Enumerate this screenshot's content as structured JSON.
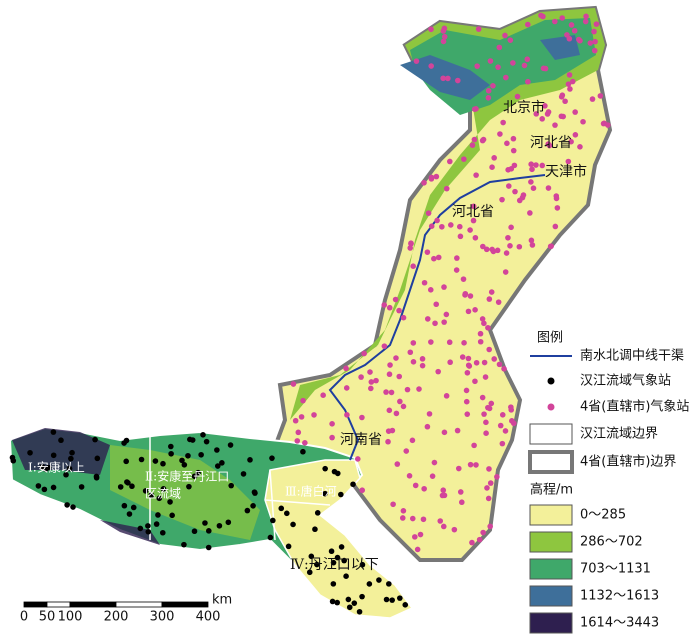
{
  "map": {
    "places": [
      "北京市",
      "河北省",
      "天津市",
      "河北省",
      "河南省"
    ],
    "basins": [
      "Ⅰ:安康以上",
      "Ⅱ:安康至丹江口",
      "区流域",
      "Ⅲ:唐白河",
      "Ⅳ:丹江口以下"
    ],
    "legend": {
      "title": "图例",
      "items": [
        "南水北调中线干渠",
        "汉江流域气象站",
        "4省(直辖市)气象站",
        "汉江流域边界",
        "4省(直辖市)边界"
      ],
      "elevation_title": "高程/m",
      "elevation_classes": [
        {
          "label": "0～285",
          "color": "#f3f09a"
        },
        {
          "label": "286～702",
          "color": "#8ec63f"
        },
        {
          "label": "703～1131",
          "color": "#3fa86a"
        },
        {
          "label": "1132～1613",
          "color": "#3e6f9a"
        },
        {
          "label": "1614～3443",
          "color": "#2e1f4f"
        }
      ]
    },
    "scale": {
      "ticks": [
        0,
        50,
        100,
        200,
        300,
        400
      ],
      "unit": "km"
    }
  }
}
